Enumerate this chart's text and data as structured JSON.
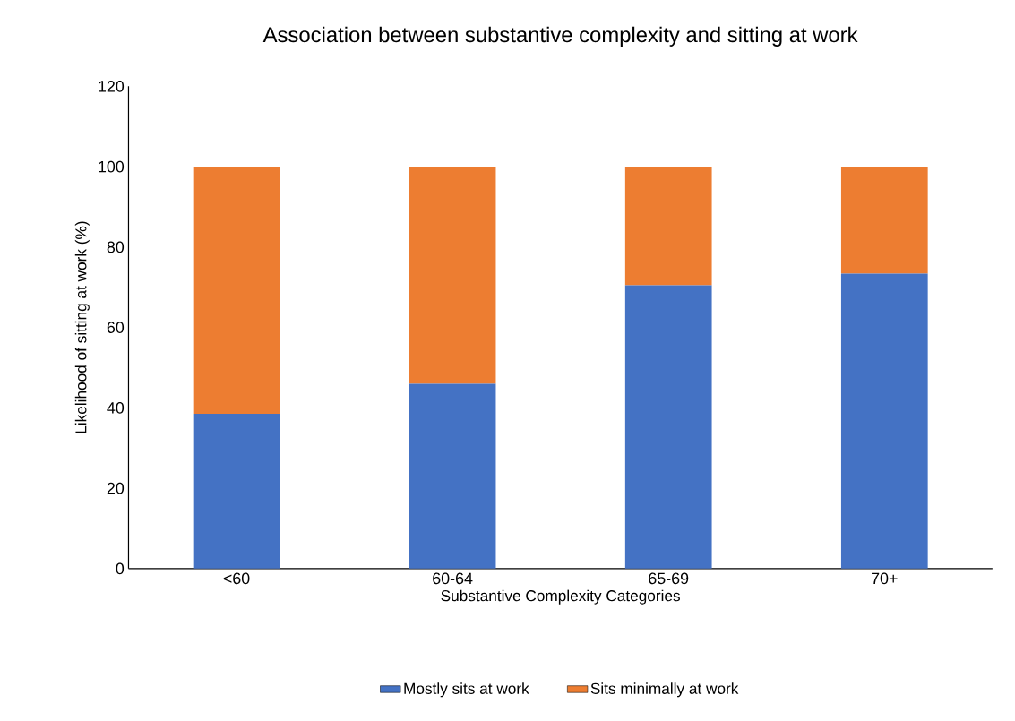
{
  "chart_data": {
    "type": "bar",
    "title": "Association between substantive complexity and sitting at work",
    "xlabel": "Substantive Complexity Categories",
    "ylabel": "Likelihood of sitting at work (%)",
    "categories": [
      "<60",
      "60-64",
      "65-69",
      "70+"
    ],
    "series": [
      {
        "name": "Mostly sits at work",
        "color": "#4472c4",
        "values": [
          38.5,
          46.0,
          70.5,
          73.4
        ]
      },
      {
        "name": "Sits minimally at work",
        "color": "#ed7d31",
        "values": [
          61.5,
          54.0,
          29.5,
          26.6
        ]
      }
    ],
    "stacked": true,
    "ylim": [
      0,
      120
    ],
    "yticks": [
      0,
      20,
      40,
      60,
      80,
      100,
      120
    ],
    "grid": false,
    "legend": "bottom"
  }
}
